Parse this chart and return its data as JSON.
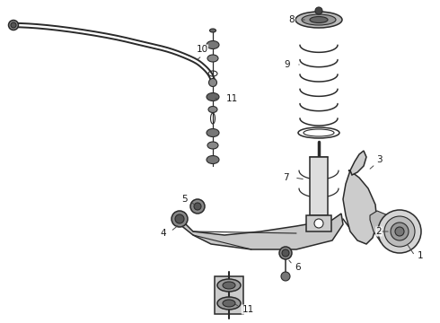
{
  "bg_color": "#ffffff",
  "line_color": "#2a2a2a",
  "label_color": "#1a1a1a",
  "figsize": [
    4.9,
    3.6
  ],
  "dpi": 100
}
